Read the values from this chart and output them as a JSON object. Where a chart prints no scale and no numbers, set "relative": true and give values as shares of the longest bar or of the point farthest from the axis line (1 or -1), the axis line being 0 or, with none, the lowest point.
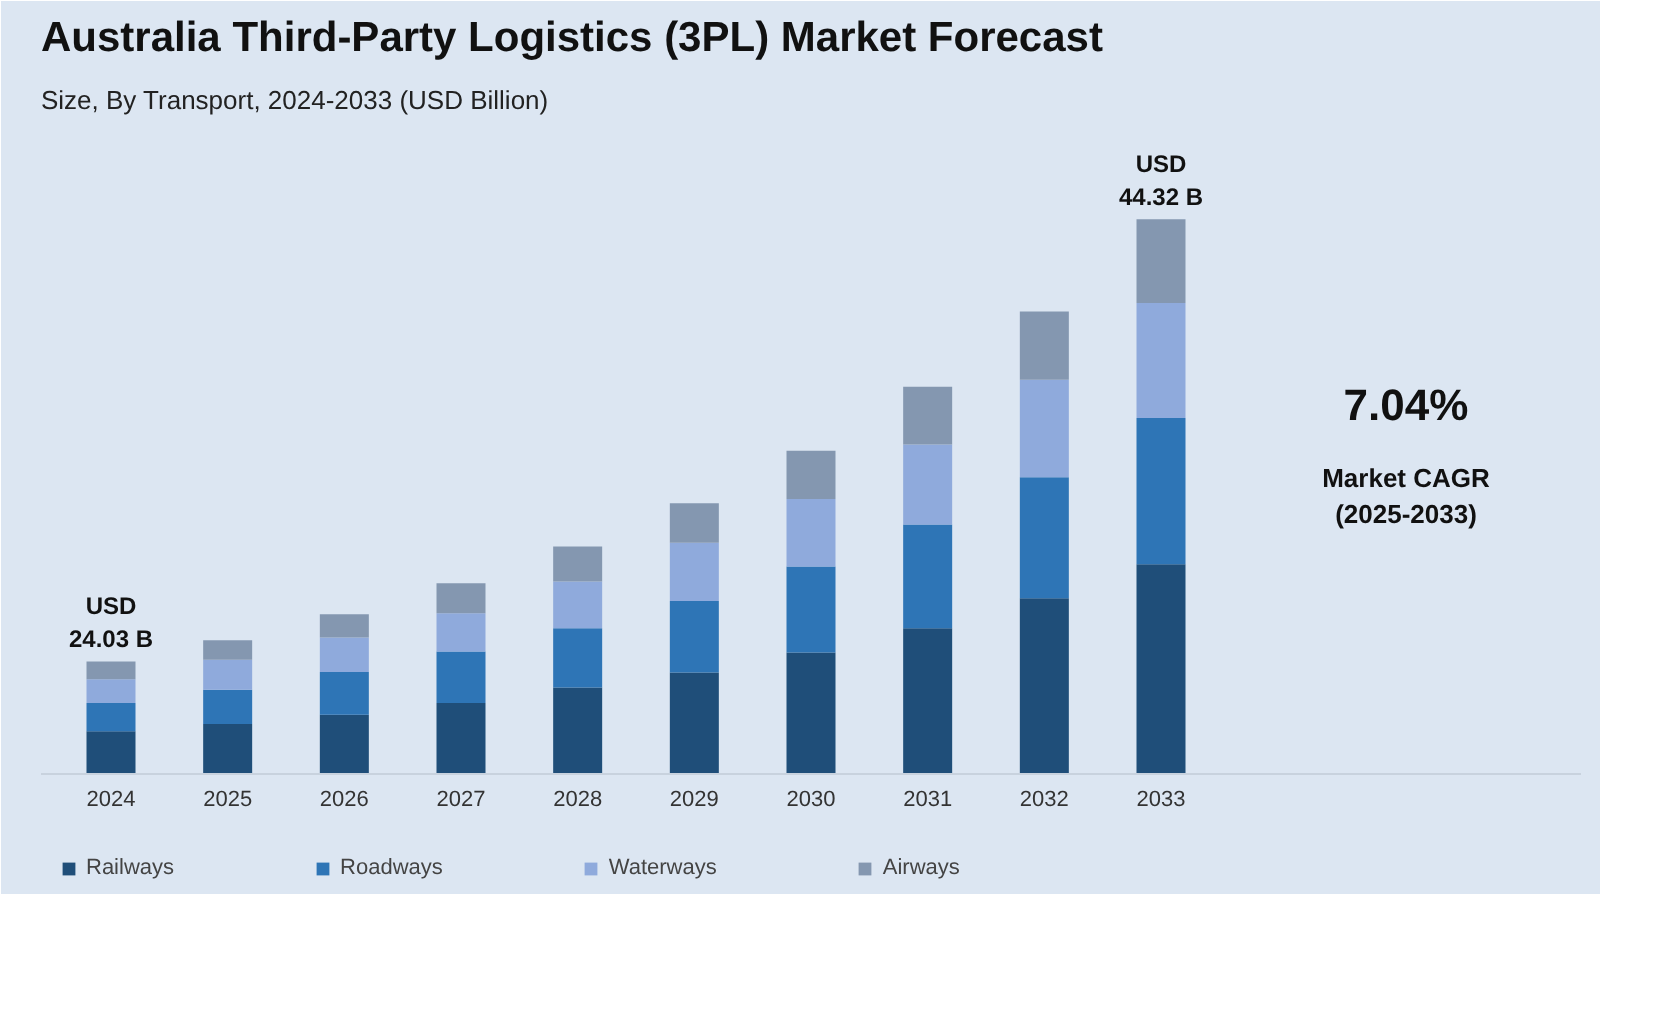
{
  "chart_data": {
    "type": "bar",
    "title": "Australia Third-Party Logistics (3PL) Market Forecast",
    "subtitle": "Size, By Transport, 2024-2033 (USD Billion)",
    "categories": [
      "2024",
      "2025",
      "2026",
      "2027",
      "2028",
      "2029",
      "2030",
      "2031",
      "2032",
      "2033"
    ],
    "relative": true,
    "stacked": true,
    "grid": false,
    "legend": "bottom",
    "series": [
      {
        "name": "Railways",
        "color": "#1f4e79",
        "values": [
          0.077,
          0.09,
          0.107,
          0.128,
          0.156,
          0.183,
          0.219,
          0.263,
          0.317,
          0.378
        ]
      },
      {
        "name": "Roadways",
        "color": "#2e75b6",
        "values": [
          0.051,
          0.062,
          0.077,
          0.093,
          0.107,
          0.129,
          0.155,
          0.187,
          0.218,
          0.264
        ]
      },
      {
        "name": "Waterways",
        "color": "#8faadc",
        "values": [
          0.043,
          0.054,
          0.062,
          0.069,
          0.084,
          0.105,
          0.122,
          0.144,
          0.176,
          0.207
        ]
      },
      {
        "name": "Airways",
        "color": "#8497b0",
        "values": [
          0.032,
          0.035,
          0.042,
          0.054,
          0.063,
          0.071,
          0.087,
          0.104,
          0.123,
          0.151
        ]
      }
    ],
    "annotations": [
      {
        "text": "USD\n24.03 B",
        "x": "2024",
        "y": 0.203
      },
      {
        "text": "USD\n44.32 B",
        "x": "2033",
        "y": 1.0
      },
      "7.04%",
      "Market CAGR\n(2025-2033)"
    ]
  }
}
